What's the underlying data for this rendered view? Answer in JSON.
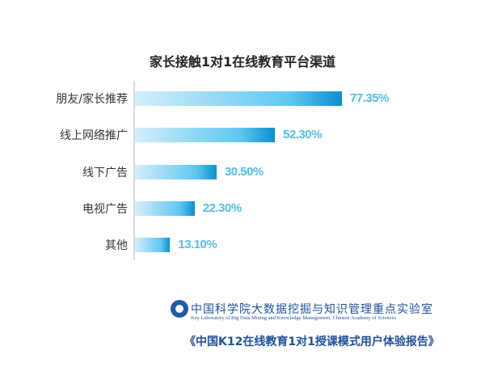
{
  "chart_data": {
    "type": "bar",
    "orientation": "horizontal",
    "title": "家长接触1对1在线教育平台渠道",
    "categories": [
      "朋友/家长推荐",
      "线上网络推广",
      "线下广告",
      "电视广告",
      "其他"
    ],
    "values": [
      77.35,
      52.3,
      30.5,
      22.3,
      13.1
    ],
    "value_labels": [
      "77.35%",
      "52.30%",
      "30.50%",
      "22.30%",
      "13.10%"
    ],
    "unit": "%",
    "grid": false,
    "bar_color_gradient": [
      "#d4eefb",
      "#0b8fd0"
    ],
    "label_color": "#52bdec"
  },
  "footer": {
    "logo": "中国科学院 emblem",
    "lab_cn": "中国科学院大数据挖掘与知识管理重点实验室",
    "lab_en": "Key Laboratory of Big Data Mining and Knowledge Management, Chinese Academy of Sciences",
    "report": "《中国K12在线教育1对1授课模式用户体验报告》"
  }
}
